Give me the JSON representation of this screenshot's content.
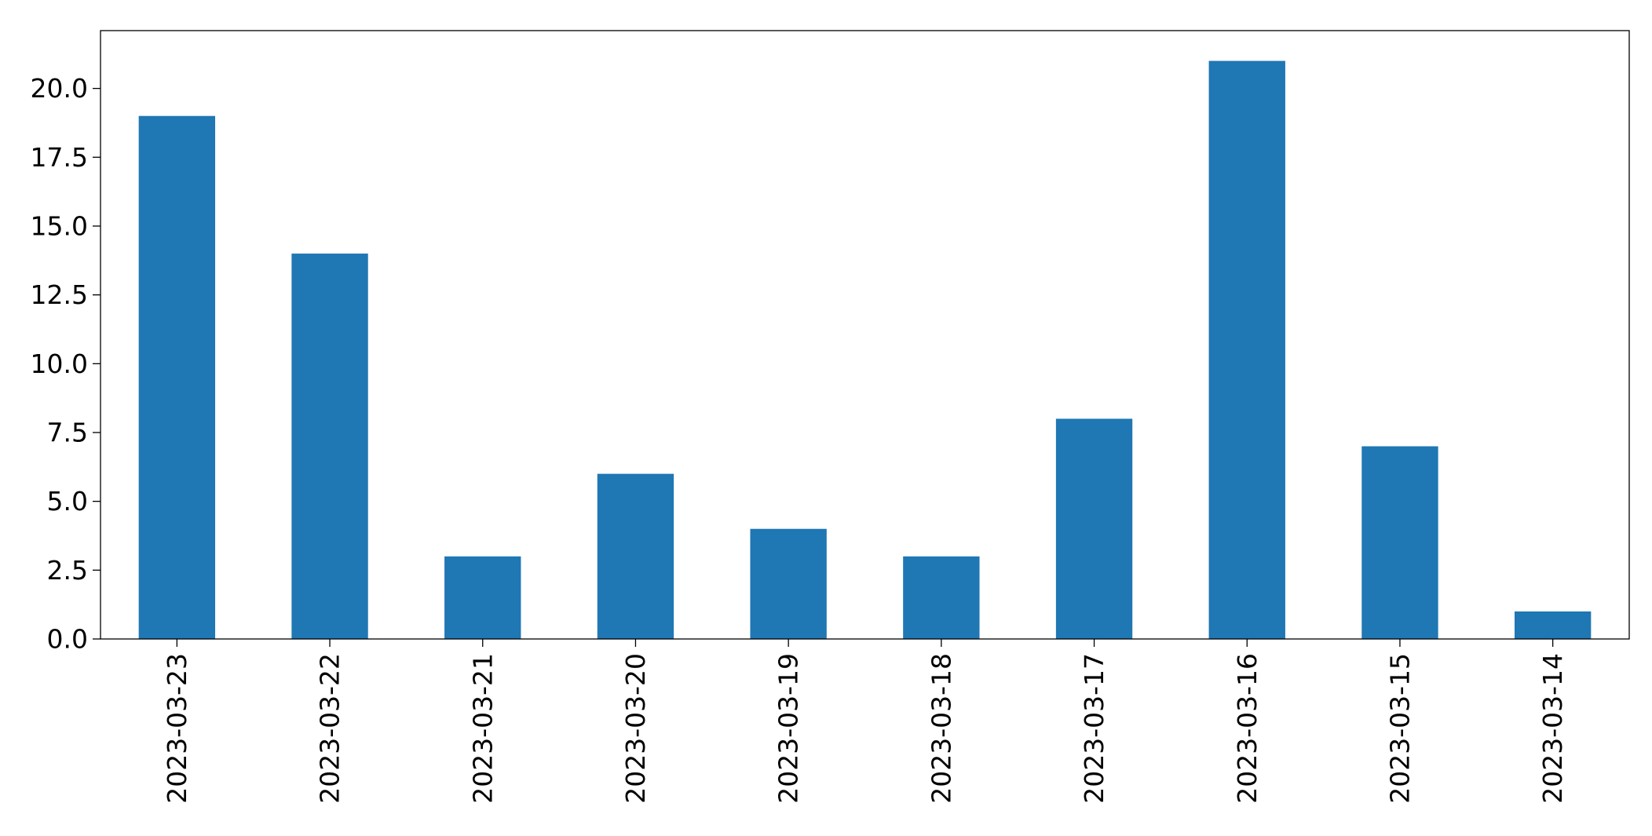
{
  "chart_data": {
    "type": "bar",
    "title": "",
    "xlabel": "",
    "ylabel": "",
    "categories": [
      "2023-03-23",
      "2023-03-22",
      "2023-03-21",
      "2023-03-20",
      "2023-03-19",
      "2023-03-18",
      "2023-03-17",
      "2023-03-16",
      "2023-03-15",
      "2023-03-14"
    ],
    "values": [
      19,
      14,
      3,
      6,
      4,
      3,
      8,
      21,
      7,
      1
    ],
    "ylim": [
      0,
      22.1
    ],
    "yticks": [
      0,
      2.5,
      5,
      7.5,
      10,
      12.5,
      15,
      17.5,
      20
    ],
    "ytick_labels": [
      "0.0",
      "2.5",
      "5.0",
      "7.5",
      "10.0",
      "12.5",
      "15.0",
      "17.5",
      "20.0"
    ],
    "bar_color": "#1f77b4",
    "grid": false,
    "legend": "none"
  }
}
